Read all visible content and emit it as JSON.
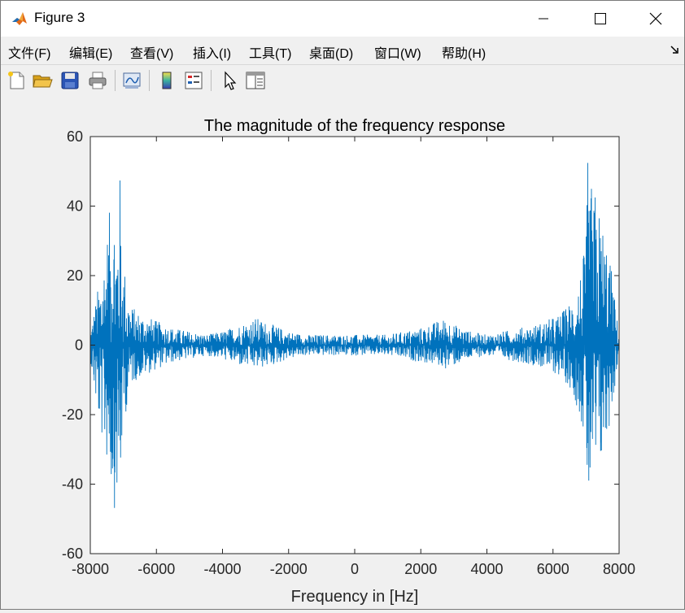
{
  "window": {
    "title": "Figure 3",
    "icon": "matlab-icon",
    "controls": [
      "minimize-icon",
      "maximize-icon",
      "close-icon"
    ]
  },
  "menu": {
    "items": [
      "文件(F)",
      "编辑(E)",
      "查看(V)",
      "插入(I)",
      "工具(T)",
      "桌面(D)",
      "窗口(W)",
      "帮助(H)"
    ],
    "overflow_icon": "dock-arrow-icon"
  },
  "toolbar": {
    "icons": [
      "new-figure-icon",
      "open-file-icon",
      "save-icon",
      "print-icon",
      "link-plot-icon",
      "colorbar-icon",
      "legend-icon",
      "edit-plot-icon",
      "property-inspector-icon"
    ]
  },
  "chart_data": {
    "type": "line",
    "title": "The magnitude of the frequency response",
    "xlabel": "Frequency in [Hz]",
    "ylabel": "",
    "xlim": [
      -8000,
      8000
    ],
    "ylim": [
      -60,
      60
    ],
    "xticks": [
      -8000,
      -6000,
      -4000,
      -2000,
      0,
      2000,
      4000,
      6000,
      8000
    ],
    "yticks": [
      -60,
      -40,
      -20,
      0,
      20,
      40,
      60
    ],
    "xtick_labels": [
      "-8000",
      "-6000",
      "-4000",
      "-2000",
      "0",
      "2000",
      "4000",
      "6000",
      "8000"
    ],
    "ytick_labels": [
      "-60",
      "-40",
      "-20",
      "0",
      "20",
      "40",
      "60"
    ],
    "grid": false,
    "line_color": "#0072bd",
    "series": [
      {
        "x": [
          -8000,
          -7800,
          -7600,
          -7400,
          -7300,
          -7200,
          -7100,
          -7050,
          -7000,
          -6900,
          -6800,
          -6600,
          -6400,
          -6200,
          -6000,
          -5500,
          -5000,
          -4500,
          -4000,
          -3500,
          -3000,
          -2500,
          -2000,
          -1500,
          -1000,
          -500,
          0,
          500,
          1000,
          1500,
          2000,
          2500,
          2800,
          3000,
          3500,
          4000,
          4500,
          5000,
          5500,
          6000,
          6200,
          6400,
          6600,
          6800,
          7000,
          7050,
          7100,
          7300,
          7400,
          7600,
          7800,
          8000
        ],
        "envelope_upper": [
          4,
          15,
          25,
          40,
          44,
          35,
          50,
          30,
          26,
          18,
          12,
          10,
          9,
          8,
          7,
          5,
          4,
          3,
          4,
          6,
          8,
          6,
          4,
          3,
          3,
          3,
          3,
          3,
          3,
          4,
          5,
          7,
          8,
          6,
          4,
          3,
          4,
          5,
          6,
          8,
          9,
          11,
          14,
          20,
          30,
          54,
          48,
          44,
          40,
          32,
          20,
          2
        ],
        "envelope_lower": [
          -4,
          -20,
          -30,
          -38,
          -48,
          -45,
          -50,
          -32,
          -25,
          -18,
          -12,
          -10,
          -9,
          -8,
          -7,
          -5,
          -4,
          -3,
          -4,
          -6,
          -7,
          -6,
          -4,
          -3,
          -3,
          -3,
          -3,
          -3,
          -3,
          -4,
          -5,
          -6,
          -7,
          -6,
          -4,
          -3,
          -4,
          -5,
          -6,
          -8,
          -9,
          -11,
          -14,
          -20,
          -30,
          -52,
          -45,
          -42,
          -38,
          -30,
          -18,
          -2
        ]
      }
    ]
  }
}
